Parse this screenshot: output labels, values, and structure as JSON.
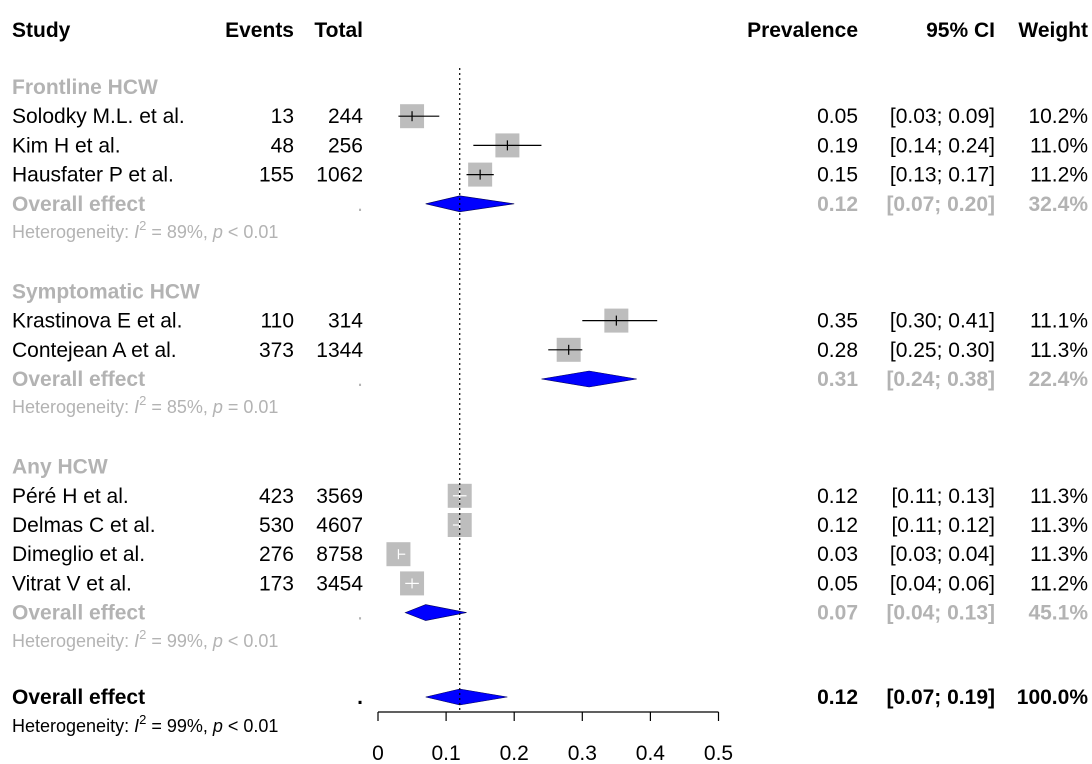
{
  "headers": {
    "study": "Study",
    "events": "Events",
    "total": "Total",
    "prevalence": "Prevalence",
    "ci": "95% CI",
    "weight": "Weight"
  },
  "chart_data": {
    "type": "forest",
    "reference_line": 0.12,
    "xlim": [
      0,
      0.5
    ],
    "xticks": [
      "0",
      "0.1",
      "0.2",
      "0.3",
      "0.4",
      "0.5"
    ],
    "colors": {
      "diamond": "#0000ff",
      "study_box": "#bdbdbd",
      "subgroup_text": "#b3b3b3"
    },
    "subgroups": [
      {
        "name": "Frontline HCW",
        "studies": [
          {
            "study": "Solodky M.L. et al.",
            "events": "13",
            "total": "244",
            "est": 0.05,
            "lo": 0.03,
            "hi": 0.09,
            "prev": "0.05",
            "ci": "[0.03; 0.09]",
            "weight": "10.2%"
          },
          {
            "study": "Kim H et al.",
            "events": "48",
            "total": "256",
            "est": 0.19,
            "lo": 0.14,
            "hi": 0.24,
            "prev": "0.19",
            "ci": "[0.14; 0.24]",
            "weight": "11.0%"
          },
          {
            "study": "Hausfater P et al.",
            "events": "155",
            "total": "1062",
            "est": 0.15,
            "lo": 0.13,
            "hi": 0.17,
            "prev": "0.15",
            "ci": "[0.13; 0.17]",
            "weight": "11.2%"
          }
        ],
        "overall": {
          "label": "Overall effect",
          "est": 0.12,
          "lo": 0.07,
          "hi": 0.2,
          "prev": "0.12",
          "ci": "[0.07; 0.20]",
          "weight": "32.4%"
        },
        "heterogeneity": {
          "prefix": "Heterogeneity: ",
          "i2": "I",
          "sup": "2",
          "mid": " = 89%, ",
          "p": "p",
          "tail": " < 0.01"
        }
      },
      {
        "name": "Symptomatic HCW",
        "studies": [
          {
            "study": "Krastinova E et al.",
            "events": "110",
            "total": "314",
            "est": 0.35,
            "lo": 0.3,
            "hi": 0.41,
            "prev": "0.35",
            "ci": "[0.30; 0.41]",
            "weight": "11.1%"
          },
          {
            "study": "Contejean A et al.",
            "events": "373",
            "total": "1344",
            "est": 0.28,
            "lo": 0.25,
            "hi": 0.3,
            "prev": "0.28",
            "ci": "[0.25; 0.30]",
            "weight": "11.3%"
          }
        ],
        "overall": {
          "label": "Overall effect",
          "est": 0.31,
          "lo": 0.24,
          "hi": 0.38,
          "prev": "0.31",
          "ci": "[0.24; 0.38]",
          "weight": "22.4%"
        },
        "heterogeneity": {
          "prefix": "Heterogeneity: ",
          "i2": "I",
          "sup": "2",
          "mid": " = 85%, ",
          "p": "p",
          "tail": " = 0.01"
        }
      },
      {
        "name": "Any HCW",
        "studies": [
          {
            "study": "Péré H et al.",
            "events": "423",
            "total": "3569",
            "est": 0.12,
            "lo": 0.11,
            "hi": 0.13,
            "prev": "0.12",
            "ci": "[0.11; 0.13]",
            "weight": "11.3%"
          },
          {
            "study": "Delmas C et al.",
            "events": "530",
            "total": "4607",
            "est": 0.12,
            "lo": 0.11,
            "hi": 0.12,
            "prev": "0.12",
            "ci": "[0.11; 0.12]",
            "weight": "11.3%"
          },
          {
            "study": "Dimeglio et al.",
            "events": "276",
            "total": "8758",
            "est": 0.03,
            "lo": 0.03,
            "hi": 0.04,
            "prev": "0.03",
            "ci": "[0.03; 0.04]",
            "weight": "11.3%"
          },
          {
            "study": "Vitrat V et al.",
            "events": "173",
            "total": "3454",
            "est": 0.05,
            "lo": 0.04,
            "hi": 0.06,
            "prev": "0.05",
            "ci": "[0.04; 0.06]",
            "weight": "11.2%"
          }
        ],
        "overall": {
          "label": "Overall effect",
          "est": 0.07,
          "lo": 0.04,
          "hi": 0.13,
          "prev": "0.07",
          "ci": "[0.04; 0.13]",
          "weight": "45.1%"
        },
        "heterogeneity": {
          "prefix": "Heterogeneity: ",
          "i2": "I",
          "sup": "2",
          "mid": " = 99%, ",
          "p": "p",
          "tail": " < 0.01"
        }
      }
    ],
    "overall": {
      "label": "Overall effect",
      "est": 0.12,
      "lo": 0.07,
      "hi": 0.19,
      "prev": "0.12",
      "ci": "[0.07; 0.19]",
      "weight": "100.0%",
      "heterogeneity": {
        "prefix": "Heterogeneity: ",
        "i2": "I",
        "sup": "2",
        "mid": " = 99%, ",
        "p": "p",
        "tail": " < 0.01"
      }
    }
  }
}
